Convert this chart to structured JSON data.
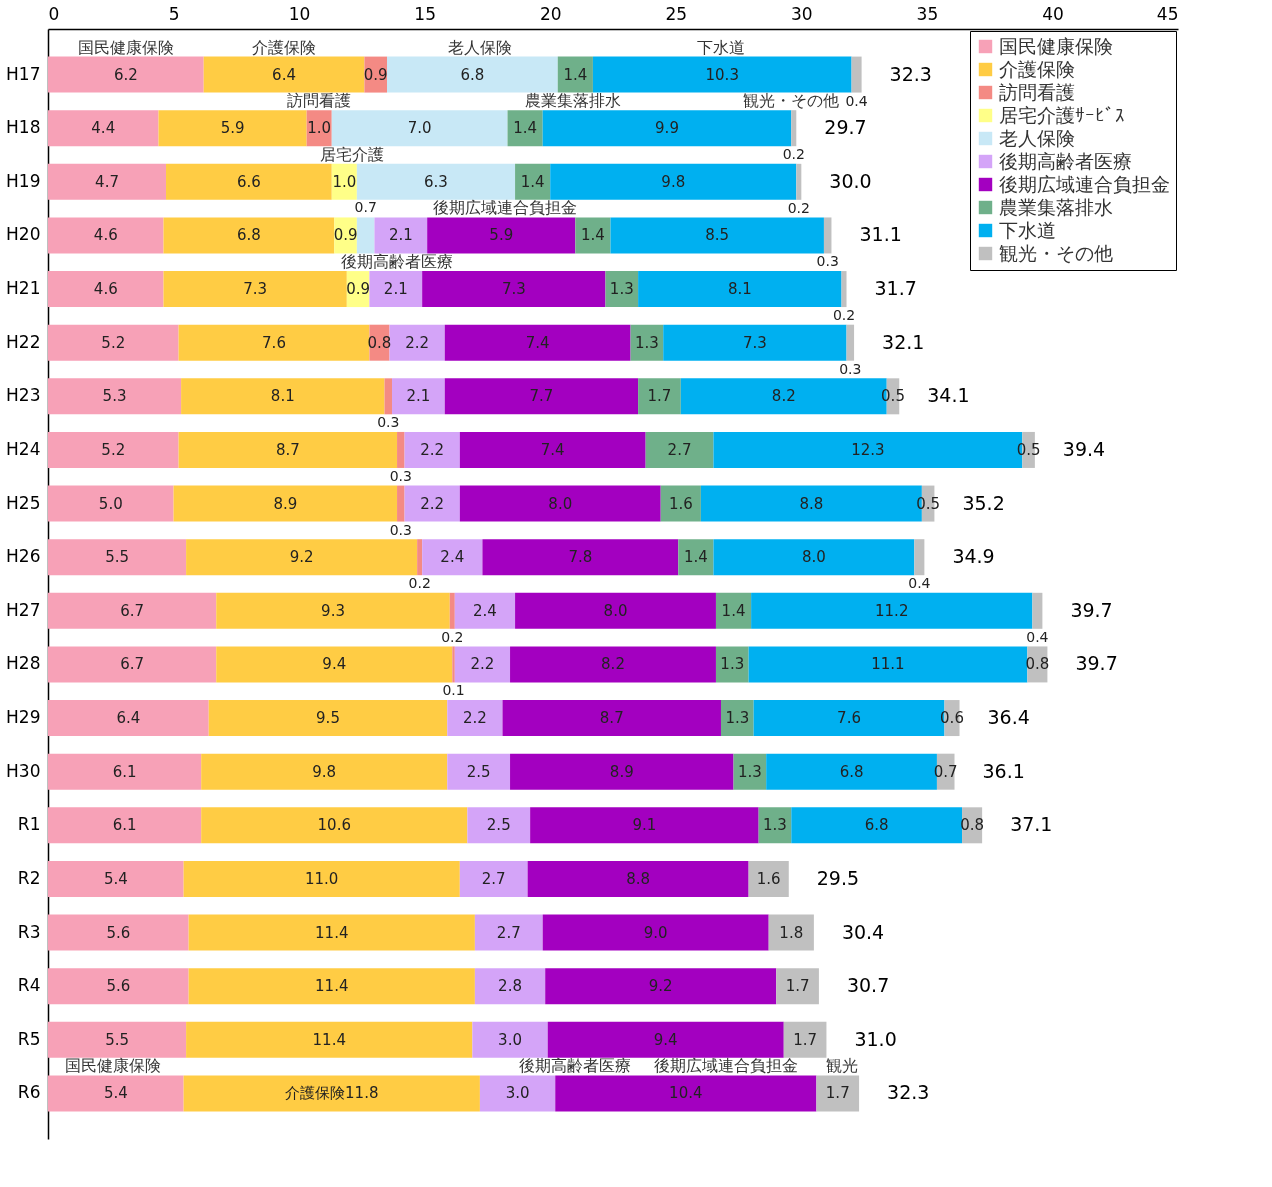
{
  "chart_data": {
    "type": "bar",
    "orientation": "horizontal",
    "stacked": true,
    "legend": "top right",
    "grid": false,
    "categories": [
      "H17",
      "H18",
      "H19",
      "H20",
      "H21",
      "H22",
      "H23",
      "H24",
      "H25",
      "H26",
      "H27",
      "H28",
      "H29",
      "H30",
      "R1",
      "R2",
      "R3",
      "R4",
      "R5",
      "R6"
    ],
    "xlim": [
      0,
      45
    ],
    "xticks": [
      0,
      5,
      10,
      15,
      20,
      25,
      30,
      35,
      40,
      45
    ],
    "series": [
      {
        "name": "国民健康保険",
        "color": "#f7a1b7",
        "values": [
          6.2,
          4.4,
          4.7,
          4.6,
          4.6,
          5.2,
          5.3,
          5.2,
          5.0,
          5.5,
          6.7,
          6.7,
          6.4,
          6.1,
          6.1,
          5.4,
          5.6,
          5.6,
          5.5,
          5.4
        ],
        "value_labels": [
          "6.2",
          "4.4",
          "4.7",
          "4.6",
          "4.6",
          "5.2",
          "5.3",
          "5.2",
          "5.0",
          "5.5",
          "6.7",
          "6.7",
          "6.4",
          "6.1",
          "6.1",
          "5.4",
          "5.6",
          "5.6",
          "5.5",
          "5.4"
        ]
      },
      {
        "name": "介護保険",
        "color": "#ffcc44",
        "values": [
          6.4,
          5.9,
          6.6,
          6.8,
          7.3,
          7.6,
          8.1,
          8.7,
          8.9,
          9.2,
          9.3,
          9.4,
          9.5,
          9.8,
          10.6,
          11.0,
          11.4,
          11.4,
          11.4,
          11.8
        ],
        "value_labels": [
          "6.4",
          "5.9",
          "6.6",
          "6.8",
          "7.3",
          "7.6",
          "8.1",
          "8.7",
          "8.9",
          "9.2",
          "9.3",
          "9.4",
          "9.5",
          "9.8",
          "10.6",
          "11.0",
          "11.4",
          "11.4",
          "11.4",
          "介護保険11.8"
        ]
      },
      {
        "name": "訪問看護",
        "color": "#f48a84",
        "values": [
          0.9,
          1.0,
          null,
          null,
          null,
          0.8,
          0.3,
          0.3,
          0.3,
          0.2,
          0.2,
          0.1,
          null,
          null,
          null,
          null,
          null,
          null,
          null,
          null
        ],
        "value_labels": [
          "0.9",
          "1.0",
          null,
          null,
          null,
          "0.8",
          "0.3",
          "0.3",
          "0.3",
          "0.2",
          "0.2",
          "0.1",
          null,
          null,
          null,
          null,
          null,
          null,
          null,
          null
        ]
      },
      {
        "name": "居宅介護ｻｰﾋﾞｽ",
        "color": "#ffff88",
        "values": [
          null,
          null,
          1.0,
          0.9,
          0.9,
          null,
          null,
          null,
          null,
          null,
          null,
          null,
          null,
          null,
          null,
          null,
          null,
          null,
          null,
          null
        ],
        "value_labels": [
          null,
          null,
          "1.0",
          "0.9",
          "0.9",
          null,
          null,
          null,
          null,
          null,
          null,
          null,
          null,
          null,
          null,
          null,
          null,
          null,
          null,
          null
        ]
      },
      {
        "name": "老人保険",
        "color": "#c8e8f6",
        "values": [
          6.8,
          7.0,
          6.3,
          0.7,
          null,
          null,
          null,
          null,
          null,
          null,
          null,
          null,
          null,
          null,
          null,
          null,
          null,
          null,
          null,
          null
        ],
        "value_labels": [
          "6.8",
          "7.0",
          "6.3",
          "0.7",
          null,
          null,
          null,
          null,
          null,
          null,
          null,
          null,
          null,
          null,
          null,
          null,
          null,
          null,
          null,
          null
        ]
      },
      {
        "name": "後期高齢者医療",
        "color": "#d4a4f8",
        "values": [
          null,
          null,
          null,
          2.1,
          2.1,
          2.2,
          2.1,
          2.2,
          2.2,
          2.4,
          2.4,
          2.2,
          2.2,
          2.5,
          2.5,
          2.7,
          2.7,
          2.8,
          3.0,
          3.0
        ],
        "value_labels": [
          null,
          null,
          null,
          "2.1",
          "2.1",
          "2.2",
          "2.1",
          "2.2",
          "2.2",
          "2.4",
          "2.4",
          "2.2",
          "2.2",
          "2.5",
          "2.5",
          "2.7",
          "2.7",
          "2.8",
          "3.0",
          "3.0"
        ]
      },
      {
        "name": "後期広域連合負担金",
        "color": "#a300c0",
        "values": [
          null,
          null,
          null,
          5.9,
          7.3,
          7.4,
          7.7,
          7.4,
          8.0,
          7.8,
          8.0,
          8.2,
          8.7,
          8.9,
          9.1,
          8.8,
          9.0,
          9.2,
          9.4,
          10.4
        ],
        "value_labels": [
          null,
          null,
          null,
          "5.9",
          "7.3",
          "7.4",
          "7.7",
          "7.4",
          "8.0",
          "7.8",
          "8.0",
          "8.2",
          "8.7",
          "8.9",
          "9.1",
          "8.8",
          "9.0",
          "9.2",
          "9.4",
          "10.4"
        ]
      },
      {
        "name": "農業集落排水",
        "color": "#6fb08a",
        "values": [
          1.4,
          1.4,
          1.4,
          1.4,
          1.3,
          1.3,
          1.7,
          2.7,
          1.6,
          1.4,
          1.4,
          1.3,
          1.3,
          1.3,
          1.3,
          null,
          null,
          null,
          null,
          null
        ],
        "value_labels": [
          "1.4",
          "1.4",
          "1.4",
          "1.4",
          "1.3",
          "1.3",
          "1.7",
          "2.7",
          "1.6",
          "1.4",
          "1.4",
          "1.3",
          "1.3",
          "1.3",
          "1.3",
          null,
          null,
          null,
          null,
          null
        ]
      },
      {
        "name": "下水道",
        "color": "#00b0f0",
        "values": [
          10.3,
          9.9,
          9.8,
          8.5,
          8.1,
          7.3,
          8.2,
          12.3,
          8.8,
          8.0,
          11.2,
          11.1,
          7.6,
          6.8,
          6.8,
          null,
          null,
          null,
          null,
          null
        ],
        "value_labels": [
          "10.3",
          "9.9",
          "9.8",
          "8.5",
          "8.1",
          "7.3",
          "8.2",
          "12.3",
          "8.8",
          "8.0",
          "11.2",
          "11.1",
          "7.6",
          "6.8",
          "6.8",
          null,
          null,
          null,
          null,
          null
        ]
      },
      {
        "name": "観光・その他",
        "color": "#c0c0c0",
        "values": [
          0.4,
          0.2,
          0.2,
          0.3,
          0.2,
          0.3,
          0.5,
          0.5,
          0.5,
          0.4,
          0.4,
          0.8,
          0.6,
          0.7,
          0.8,
          1.6,
          1.8,
          1.7,
          1.7,
          1.7
        ],
        "value_labels": [
          "0.4",
          "0.2",
          "0.2",
          "0.3",
          "0.2",
          "0.3",
          "0.5",
          "0.5",
          "0.5",
          "0.4",
          "0.4",
          "0.8",
          "0.6",
          "0.7",
          "0.8",
          "1.6",
          "1.8",
          "1.7",
          "1.7",
          "1.7"
        ]
      }
    ],
    "totals": [
      "32.3",
      "29.7",
      "30.0",
      "31.1",
      "31.7",
      "32.1",
      "34.1",
      "39.4",
      "35.2",
      "34.9",
      "39.7",
      "39.7",
      "36.4",
      "36.1",
      "37.1",
      "29.5",
      "30.4",
      "30.7",
      "31.0",
      "32.3"
    ],
    "annotations": [
      {
        "text": "国民健康保険",
        "x": 3.1,
        "y": "H17"
      },
      {
        "text": "介護保険",
        "x": 9.4,
        "y": "H17"
      },
      {
        "text": "老人保険",
        "x": 17.2,
        "y": "H17"
      },
      {
        "text": "下水道",
        "x": 26.8,
        "y": "H17"
      },
      {
        "text": "訪問看護",
        "x": 10.8,
        "y": "H18"
      },
      {
        "text": "農業集落排水",
        "x": 20.9,
        "y": "H18"
      },
      {
        "text": "観光・その他",
        "x": 29.6,
        "y": "H18"
      },
      {
        "text": "居宅介護",
        "x": 12.1,
        "y": "H19"
      },
      {
        "text": "後期広域連合負担金",
        "x": 18.2,
        "y": "H20"
      },
      {
        "text": "後期高齢者医療",
        "x": 13.9,
        "y": "H21"
      },
      {
        "text": "国民健康保険",
        "x": 2.6,
        "y": "R6"
      },
      {
        "text": "後期高齢者医療",
        "x": 21.0,
        "y": "R6"
      },
      {
        "text": "後期広域連合負担金",
        "x": 27.0,
        "y": "R6"
      },
      {
        "text": "観光",
        "x": 31.6,
        "y": "R6"
      }
    ]
  }
}
